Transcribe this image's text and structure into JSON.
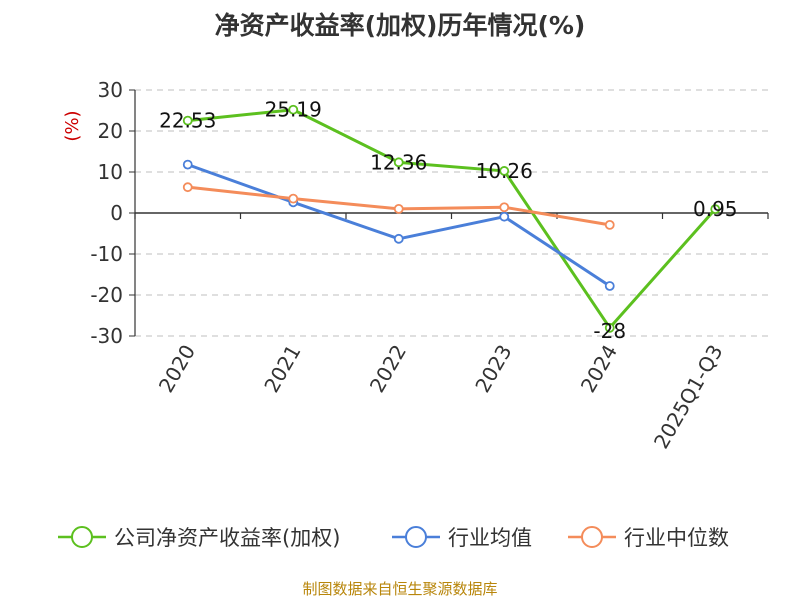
{
  "header": {
    "title": "净资产收益率(加权)历年情况(%)"
  },
  "footer": {
    "source": "制图数据来自恒生聚源数据库"
  },
  "colors": {
    "company": "#5cc01f",
    "industry_avg": "#4a7fd9",
    "industry_median": "#f48c5a",
    "unit": "#cc0000",
    "grid": "#cccccc",
    "axis": "#333333"
  },
  "chart_data": {
    "type": "line",
    "title": "净资产收益率(加权)历年情况(%)",
    "ylabel": "(%)",
    "xlabel": "",
    "categories": [
      "2020",
      "2021",
      "2022",
      "2023",
      "2024",
      "2025Q1-Q3"
    ],
    "ylim": [
      -30,
      30
    ],
    "yticks": [
      "30",
      "20",
      "10",
      "0",
      "-10",
      "-20",
      "-30"
    ],
    "yticks_values": [
      30,
      20,
      10,
      0,
      -10,
      -20,
      -30
    ],
    "legend_position": "bottom",
    "series": [
      {
        "name": "公司净资产收益率(加权)",
        "color": "#5cc01f",
        "values": [
          22.53,
          25.19,
          12.36,
          10.26,
          -28,
          0.95
        ],
        "labels": [
          "22.53",
          "25.19",
          "12.36",
          "10.26",
          "-28",
          "0.95"
        ]
      },
      {
        "name": "行业均值",
        "color": "#4a7fd9",
        "values": [
          11.8,
          2.6,
          -6.3,
          -0.9,
          -17.8,
          null
        ]
      },
      {
        "name": "行业中位数",
        "color": "#f48c5a",
        "values": [
          6.3,
          3.5,
          1.0,
          1.4,
          -2.9,
          null
        ]
      }
    ]
  }
}
